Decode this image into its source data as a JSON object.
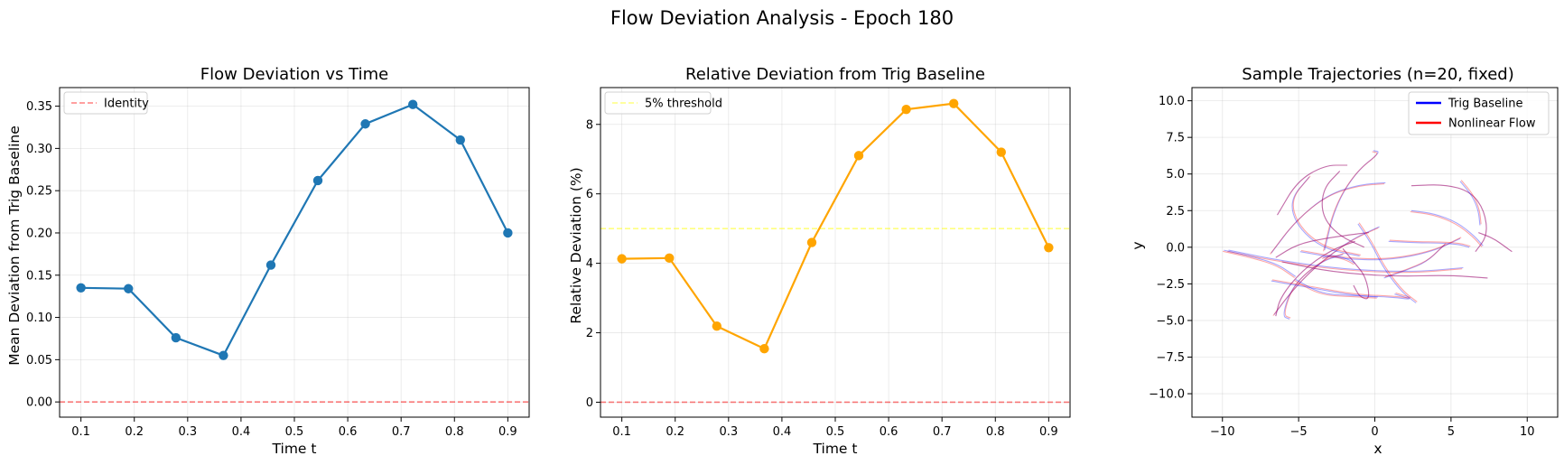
{
  "figure": {
    "suptitle": "Flow Deviation Analysis - Epoch 180"
  },
  "chart_data": [
    {
      "type": "line",
      "title": "Flow Deviation vs Time",
      "xlabel": "Time t",
      "ylabel": "Mean Deviation from Trig Baseline",
      "xlim": [
        0.06,
        0.94
      ],
      "ylim": [
        -0.018,
        0.372
      ],
      "xticks": [
        0.1,
        0.2,
        0.3,
        0.4,
        0.5,
        0.6,
        0.7,
        0.8,
        0.9
      ],
      "xtick_labels": [
        "0.1",
        "0.2",
        "0.3",
        "0.4",
        "0.5",
        "0.6",
        "0.7",
        "0.8",
        "0.9"
      ],
      "yticks": [
        0.0,
        0.05,
        0.1,
        0.15,
        0.2,
        0.25,
        0.3,
        0.35
      ],
      "ytick_labels": [
        "0.00",
        "0.05",
        "0.10",
        "0.15",
        "0.20",
        "0.25",
        "0.30",
        "0.35"
      ],
      "grid": true,
      "series": [
        {
          "color": "#1f77b4",
          "marker": "circle",
          "x": [
            0.1,
            0.189,
            0.278,
            0.367,
            0.456,
            0.544,
            0.633,
            0.722,
            0.811,
            0.9
          ],
          "y": [
            0.135,
            0.134,
            0.076,
            0.055,
            0.162,
            0.262,
            0.329,
            0.352,
            0.31,
            0.2
          ]
        }
      ],
      "hlines": [
        {
          "name": "Identity",
          "y": 0.0,
          "color": "#ff0000",
          "style": "dashed",
          "opacity": 0.5
        }
      ],
      "legend": {
        "loc": "upper-left",
        "entries": [
          "Identity"
        ]
      }
    },
    {
      "type": "line",
      "title": "Relative Deviation from Trig Baseline",
      "xlabel": "Time t",
      "ylabel": "Relative Deviation (%)",
      "xlim": [
        0.06,
        0.94
      ],
      "ylim": [
        -0.43,
        9.06
      ],
      "xticks": [
        0.1,
        0.2,
        0.3,
        0.4,
        0.5,
        0.6,
        0.7,
        0.8,
        0.9
      ],
      "xtick_labels": [
        "0.1",
        "0.2",
        "0.3",
        "0.4",
        "0.5",
        "0.6",
        "0.7",
        "0.8",
        "0.9"
      ],
      "yticks": [
        0,
        2,
        4,
        6,
        8
      ],
      "ytick_labels": [
        "0",
        "2",
        "4",
        "6",
        "8"
      ],
      "grid": true,
      "series": [
        {
          "color": "#ffa500",
          "marker": "circle",
          "x": [
            0.1,
            0.189,
            0.278,
            0.367,
            0.456,
            0.544,
            0.633,
            0.722,
            0.811,
            0.9
          ],
          "y": [
            4.13,
            4.15,
            2.19,
            1.54,
            4.6,
            7.1,
            8.43,
            8.6,
            7.2,
            4.45
          ]
        }
      ],
      "hlines": [
        {
          "name": "5% threshold",
          "y": 5.0,
          "color": "#ffff00",
          "style": "dashed",
          "opacity": 0.5
        },
        {
          "y": 0.0,
          "color": "#ff0000",
          "style": "dashed",
          "opacity": 0.5
        }
      ],
      "legend": {
        "loc": "upper-left",
        "entries": [
          "5% threshold"
        ]
      }
    },
    {
      "type": "line",
      "title": "Sample Trajectories (n=20, fixed)",
      "xlabel": "x",
      "ylabel": "y",
      "xlim": [
        -12.0,
        12.0
      ],
      "ylim": [
        -11.6,
        10.9
      ],
      "xticks": [
        -10,
        -5,
        0,
        5,
        10
      ],
      "xtick_labels": [
        "−10",
        "−5",
        "0",
        "5",
        "10"
      ],
      "yticks": [
        -10.0,
        -7.5,
        -5.0,
        -2.5,
        0.0,
        2.5,
        5.0,
        7.5,
        10.0
      ],
      "ytick_labels": [
        "−10.0",
        "−7.5",
        "−5.0",
        "−2.5",
        "0.0",
        "2.5",
        "5.0",
        "7.5",
        "10.0"
      ],
      "grid": true,
      "legend": {
        "loc": "upper-right",
        "entries": [
          "Trig Baseline",
          "Nonlinear Flow"
        ]
      },
      "legend_colors": [
        "#0000ff",
        "#ff0000"
      ],
      "trajectories": [
        {
          "pts": [
            [
              -6.6,
              -4.6
            ],
            [
              -5.6,
              -3.2
            ],
            [
              -3.9,
              -1.3
            ],
            [
              -1.6,
              0.5
            ],
            [
              0.3,
              1.4
            ]
          ]
        },
        {
          "pts": [
            [
              -6.5,
              -4.7
            ],
            [
              -6.2,
              -3.4
            ],
            [
              -4.8,
              -1.6
            ],
            [
              -2.9,
              -0.2
            ],
            [
              -1.3,
              0.4
            ]
          ]
        },
        {
          "pts": [
            [
              -5.6,
              -4.9
            ],
            [
              -6.1,
              -4.7
            ],
            [
              -5.4,
              -2.6
            ],
            [
              -3.6,
              -1.0
            ],
            [
              -2.1,
              -0.5
            ]
          ]
        },
        {
          "pts": [
            [
              -6.8,
              -0.4
            ],
            [
              -5.2,
              1.8
            ],
            [
              -3.1,
              3.6
            ],
            [
              -0.9,
              4.3
            ],
            [
              0.7,
              4.4
            ]
          ]
        },
        {
          "pts": [
            [
              -6.4,
              2.2
            ],
            [
              -5.1,
              4.5
            ],
            [
              -3.3,
              5.6
            ],
            [
              -1.8,
              5.6
            ]
          ]
        },
        {
          "pts": [
            [
              -4.3,
              4.8
            ],
            [
              -5.6,
              3.2
            ],
            [
              -5.1,
              1.4
            ],
            [
              -3.4,
              -0.1
            ],
            [
              -1.0,
              -0.6
            ]
          ]
        },
        {
          "pts": [
            [
              -3.3,
              -0.2
            ],
            [
              -2.6,
              2.8
            ],
            [
              -1.2,
              5.2
            ],
            [
              0.4,
              6.5
            ],
            [
              -0.1,
              6.6
            ]
          ]
        },
        {
          "pts": [
            [
              -2.3,
              5.2
            ],
            [
              -3.4,
              4.0
            ],
            [
              -3.5,
              2.2
            ],
            [
              -2.4,
              0.8
            ],
            [
              -0.7,
              0.0
            ]
          ]
        },
        {
          "pts": [
            [
              -4.9,
              -0.3
            ],
            [
              -2.2,
              -0.8
            ],
            [
              0.9,
              -0.9
            ],
            [
              3.8,
              -0.3
            ],
            [
              5.6,
              0.6
            ]
          ]
        },
        {
          "pts": [
            [
              -9.6,
              -0.2
            ],
            [
              -6.3,
              -0.9
            ],
            [
              -2.1,
              -1.5
            ],
            [
              2.4,
              -1.7
            ],
            [
              5.8,
              -1.4
            ]
          ]
        },
        {
          "pts": [
            [
              -6.1,
              -1.0
            ],
            [
              -2.8,
              -1.7
            ],
            [
              1.2,
              -2.0
            ],
            [
              4.8,
              -1.9
            ],
            [
              7.4,
              -2.1
            ]
          ]
        },
        {
          "pts": [
            [
              -6.8,
              -2.3
            ],
            [
              -4.0,
              -2.8
            ],
            [
              -1.4,
              -3.3
            ],
            [
              1.1,
              -3.4
            ],
            [
              2.6,
              -3.6
            ],
            [
              1.3,
              -3.2
            ]
          ]
        },
        {
          "pts": [
            [
              -5.2,
              -2.2
            ],
            [
              -3.5,
              -3.2
            ],
            [
              -1.3,
              -3.3
            ],
            [
              0.2,
              -3.4
            ]
          ]
        },
        {
          "pts": [
            [
              -6.5,
              -0.7
            ],
            [
              -5.1,
              0.2
            ],
            [
              -3.3,
              0.6
            ],
            [
              -1.3,
              0.9
            ],
            [
              -0.4,
              1.0
            ]
          ]
        },
        {
          "pts": [
            [
              0.9,
              0.4
            ],
            [
              2.7,
              0.3
            ],
            [
              4.2,
              0.3
            ],
            [
              5.5,
              0.2
            ],
            [
              6.2,
              0.0
            ]
          ]
        },
        {
          "pts": [
            [
              2.4,
              2.5
            ],
            [
              3.9,
              2.3
            ],
            [
              5.4,
              1.7
            ],
            [
              6.5,
              0.8
            ],
            [
              7.1,
              0.1
            ]
          ]
        },
        {
          "pts": [
            [
              2.4,
              4.2
            ],
            [
              4.6,
              4.3
            ],
            [
              6.3,
              3.8
            ],
            [
              7.2,
              2.5
            ],
            [
              7.4,
              0.8
            ],
            [
              6.6,
              -0.3
            ]
          ]
        },
        {
          "pts": [
            [
              -1.1,
              1.6
            ],
            [
              -0.2,
              0.2
            ],
            [
              0.5,
              -1.3
            ],
            [
              1.7,
              -3.0
            ],
            [
              2.7,
              -3.8
            ]
          ]
        },
        {
          "pts": [
            [
              -3.4,
              -0.7
            ],
            [
              -2.8,
              -0.5
            ],
            [
              -1.8,
              -0.8
            ],
            [
              -1.3,
              -1.1
            ]
          ]
        },
        {
          "pts": [
            [
              -2.1,
              -0.1
            ],
            [
              -1.3,
              -1.1
            ],
            [
              -0.6,
              -2.0
            ],
            [
              -0.3,
              -3.6
            ],
            [
              -1.0,
              -3.4
            ],
            [
              -1.4,
              -2.6
            ]
          ]
        },
        {
          "pts": [
            [
              0.6,
              -2.1
            ],
            [
              2.0,
              -1.6
            ],
            [
              3.4,
              -1.0
            ],
            [
              4.3,
              -0.1
            ],
            [
              4.6,
              0.2
            ]
          ]
        },
        {
          "pts": [
            [
              -9.9,
              -0.2
            ],
            [
              -7.8,
              -0.7
            ],
            [
              -6.3,
              -1.2
            ],
            [
              -5.2,
              -2.0
            ]
          ]
        },
        {
          "pts": [
            [
              6.8,
              1.0
            ],
            [
              7.8,
              0.6
            ],
            [
              8.6,
              0.0
            ],
            [
              9.0,
              -0.3
            ]
          ]
        },
        {
          "pts": [
            [
              5.6,
              4.5
            ],
            [
              6.4,
              3.5
            ],
            [
              6.8,
              2.5
            ],
            [
              6.9,
              1.5
            ]
          ]
        }
      ]
    }
  ]
}
